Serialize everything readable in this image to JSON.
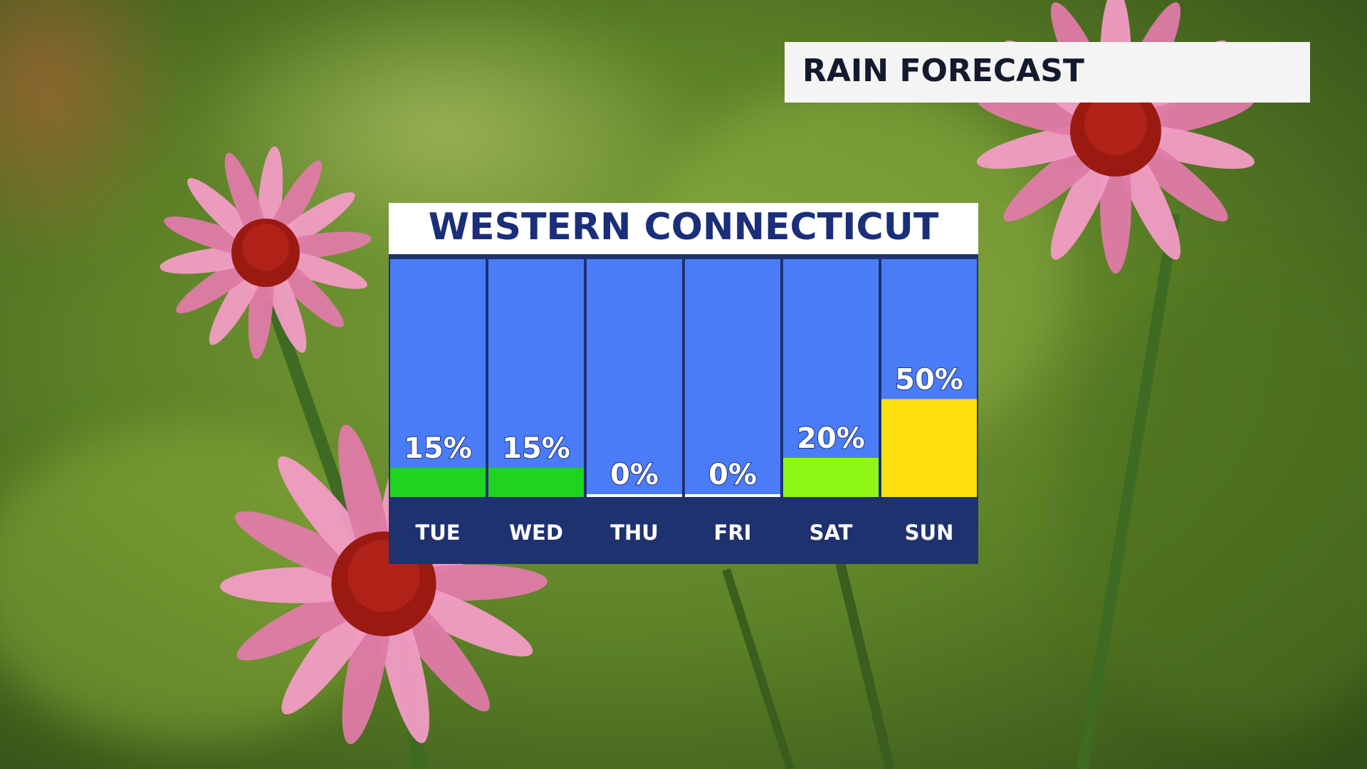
{
  "header": "RAIN FORECAST",
  "chart_data": {
    "type": "bar",
    "title": "WESTERN CONNECTICUT",
    "categories": [
      "TUE",
      "WED",
      "THU",
      "FRI",
      "SAT",
      "SUN"
    ],
    "values": [
      15,
      15,
      0,
      0,
      20,
      50
    ],
    "value_labels": [
      "15%",
      "15%",
      "0%",
      "0%",
      "20%",
      "50%"
    ],
    "colors": [
      "#1ed41e",
      "#1ed41e",
      "#ffffff",
      "#ffffff",
      "#8ef718",
      "#ffdf10"
    ]
  }
}
